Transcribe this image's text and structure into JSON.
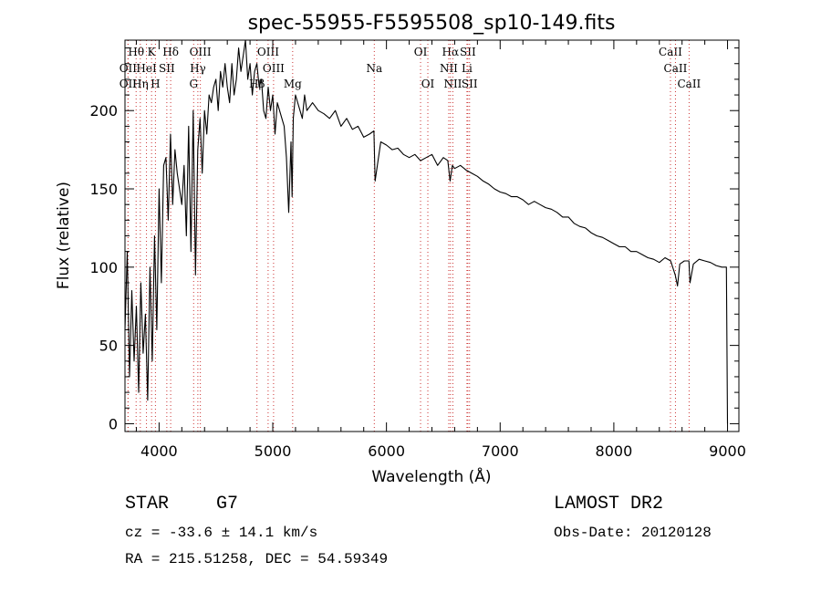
{
  "chart_data": {
    "type": "line",
    "title": "spec-55955-F5595508_sp10-149.fits",
    "xlabel": "Wavelength (Å)",
    "ylabel": "Flux (relative)",
    "xlim": [
      3700,
      9100
    ],
    "ylim": [
      -5,
      245
    ],
    "xticks": [
      4000,
      5000,
      6000,
      7000,
      8000,
      9000
    ],
    "yticks": [
      0,
      50,
      100,
      150,
      200
    ],
    "grid": false,
    "legend": "none",
    "line_color": "#000000",
    "marker_color": "#cc3333",
    "series": [
      {
        "x": [
          3700,
          3720,
          3740,
          3760,
          3780,
          3800,
          3820,
          3840,
          3860,
          3880,
          3900,
          3920,
          3940,
          3960,
          3980,
          4000,
          4020,
          4040,
          4060,
          4080,
          4100,
          4120,
          4140,
          4160,
          4180,
          4200,
          4220,
          4240,
          4260,
          4280,
          4300,
          4320,
          4340,
          4360,
          4380,
          4400,
          4420,
          4440,
          4460,
          4480,
          4500,
          4520,
          4540,
          4560,
          4580,
          4600,
          4620,
          4640,
          4660,
          4680,
          4700,
          4720,
          4740,
          4760,
          4780,
          4800,
          4820,
          4840,
          4860,
          4880,
          4900,
          4920,
          4940,
          4960,
          4980,
          5000,
          5020,
          5040,
          5060,
          5080,
          5100,
          5120,
          5140,
          5160,
          5170,
          5180,
          5200,
          5220,
          5240,
          5260,
          5280,
          5300,
          5350,
          5400,
          5450,
          5500,
          5550,
          5600,
          5650,
          5700,
          5750,
          5800,
          5850,
          5890,
          5900,
          5950,
          6000,
          6050,
          6100,
          6150,
          6200,
          6250,
          6300,
          6350,
          6400,
          6450,
          6500,
          6540,
          6560,
          6580,
          6600,
          6650,
          6700,
          6750,
          6800,
          6850,
          6900,
          6950,
          7000,
          7050,
          7100,
          7150,
          7200,
          7250,
          7300,
          7350,
          7400,
          7450,
          7500,
          7550,
          7600,
          7650,
          7700,
          7750,
          7800,
          7850,
          7900,
          7950,
          8000,
          8050,
          8100,
          8150,
          8200,
          8250,
          8300,
          8350,
          8400,
          8450,
          8500,
          8540,
          8560,
          8580,
          8620,
          8660,
          8670,
          8700,
          8750,
          8800,
          8850,
          8900,
          8950,
          8990,
          9000
        ],
        "values": [
          60,
          110,
          30,
          85,
          40,
          75,
          20,
          90,
          45,
          70,
          15,
          100,
          40,
          120,
          60,
          150,
          90,
          165,
          170,
          130,
          185,
          140,
          175,
          160,
          150,
          140,
          165,
          120,
          190,
          110,
          200,
          95,
          175,
          195,
          160,
          200,
          185,
          210,
          205,
          215,
          220,
          200,
          225,
          215,
          230,
          215,
          205,
          230,
          210,
          220,
          240,
          225,
          235,
          245,
          220,
          230,
          210,
          225,
          230,
          215,
          220,
          200,
          195,
          215,
          200,
          210,
          185,
          205,
          200,
          195,
          190,
          170,
          135,
          180,
          145,
          195,
          210,
          205,
          200,
          195,
          210,
          200,
          205,
          200,
          198,
          195,
          200,
          190,
          195,
          188,
          190,
          183,
          185,
          187,
          155,
          180,
          178,
          175,
          176,
          172,
          170,
          172,
          168,
          170,
          172,
          165,
          170,
          168,
          155,
          165,
          163,
          165,
          162,
          160,
          158,
          155,
          153,
          150,
          148,
          147,
          145,
          145,
          143,
          140,
          142,
          140,
          138,
          137,
          135,
          132,
          132,
          128,
          126,
          125,
          122,
          120,
          119,
          117,
          115,
          113,
          113,
          110,
          110,
          108,
          106,
          105,
          103,
          106,
          104,
          95,
          88,
          102,
          104,
          104,
          90,
          102,
          105,
          104,
          103,
          101,
          100,
          100,
          0
        ]
      }
    ],
    "line_markers": [
      {
        "label": "Hθ",
        "x": 3798,
        "row": 0
      },
      {
        "label": "K",
        "x": 3934,
        "row": 0
      },
      {
        "label": "Hδ",
        "x": 4102,
        "row": 0
      },
      {
        "label": "OIII",
        "x": 4363,
        "row": 0
      },
      {
        "label": "OIII",
        "x": 4959,
        "row": 0
      },
      {
        "label": "OI",
        "x": 6300,
        "row": 0
      },
      {
        "label": "Hα",
        "x": 6563,
        "row": 0
      },
      {
        "label": "SII",
        "x": 6716,
        "row": 0
      },
      {
        "label": "CaII",
        "x": 8498,
        "row": 0
      },
      {
        "label": "OII",
        "x": 3727,
        "row": 1
      },
      {
        "label": "HeI",
        "x": 3889,
        "row": 1
      },
      {
        "label": "SII",
        "x": 4068,
        "row": 1
      },
      {
        "label": "Hγ",
        "x": 4341,
        "row": 1
      },
      {
        "label": "OIII",
        "x": 5007,
        "row": 1
      },
      {
        "label": "Na",
        "x": 5893,
        "row": 1
      },
      {
        "label": "NII",
        "x": 6548,
        "row": 1
      },
      {
        "label": "Li",
        "x": 6708,
        "row": 1
      },
      {
        "label": "CaII",
        "x": 8542,
        "row": 1
      },
      {
        "label": "OII",
        "x": 3727,
        "row": 2
      },
      {
        "label": "Hη",
        "x": 3835,
        "row": 2
      },
      {
        "label": "H",
        "x": 3968,
        "row": 2
      },
      {
        "label": "G",
        "x": 4304,
        "row": 2
      },
      {
        "label": "Hβ",
        "x": 4861,
        "row": 2
      },
      {
        "label": "Mg",
        "x": 5175,
        "row": 2
      },
      {
        "label": "OI",
        "x": 6364,
        "row": 2
      },
      {
        "label": "NII",
        "x": 6584,
        "row": 2
      },
      {
        "label": "SII",
        "x": 6731,
        "row": 2
      },
      {
        "label": "CaII",
        "x": 8662,
        "row": 2
      }
    ]
  },
  "info": {
    "object_type": "STAR",
    "subclass": "G7",
    "survey": "LAMOST DR2",
    "cz": "cz = -33.6 ± 14.1 km/s",
    "obs_date": "Obs-Date: 20120128",
    "coords": "RA = 215.51258, DEC =  54.59349"
  }
}
